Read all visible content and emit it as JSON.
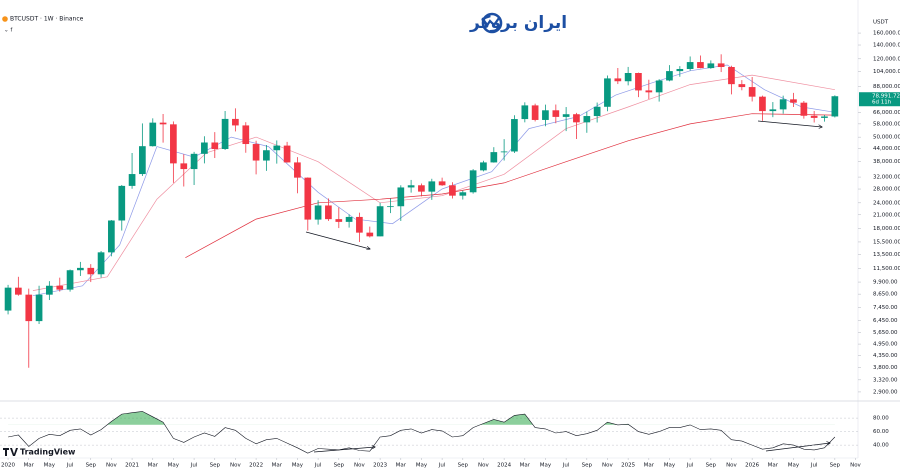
{
  "chart_data": {
    "type": "candlestick",
    "title": "BTCUSDT · 1W · Binance",
    "brand": "ایران بروکر",
    "watermark": "TradingView",
    "currency": "USDT",
    "log": true,
    "grid": false,
    "up_color": "#089981",
    "down_color": "#f23645",
    "xlim": [
      2019.935,
      2026.91
    ],
    "ylim": [
      2650,
      198000
    ],
    "x": [
      2020,
      2020.083,
      2020.167,
      2020.25,
      2020.333,
      2020.417,
      2020.5,
      2020.583,
      2020.667,
      2020.75,
      2020.833,
      2020.917,
      2021,
      2021.083,
      2021.167,
      2021.25,
      2021.333,
      2021.417,
      2021.5,
      2021.583,
      2021.667,
      2021.75,
      2021.833,
      2021.917,
      2022,
      2022.083,
      2022.167,
      2022.25,
      2022.333,
      2022.417,
      2022.5,
      2022.583,
      2022.667,
      2022.75,
      2022.833,
      2022.917,
      2023,
      2023.083,
      2023.167,
      2023.25,
      2023.333,
      2023.417,
      2023.5,
      2023.583,
      2023.667,
      2023.75,
      2023.833,
      2023.917,
      2024,
      2024.083,
      2024.167,
      2024.25,
      2024.333,
      2024.417,
      2024.5,
      2024.583,
      2024.667,
      2024.75,
      2024.833,
      2024.917,
      2025,
      2025.083,
      2025.167,
      2025.25,
      2025.333,
      2025.417,
      2025.5,
      2025.583,
      2025.667,
      2025.75,
      2025.833,
      2025.917,
      2026,
      2026.083,
      2026.167,
      2026.25,
      2026.333,
      2026.417,
      2026.5,
      2026.583,
      2026.667
    ],
    "open": [
      7200,
      9300,
      8600,
      6400,
      8600,
      9500,
      9100,
      11300,
      11600,
      10800,
      13800,
      19700,
      29000,
      33100,
      45200,
      58800,
      57700,
      37300,
      35000,
      41500,
      47100,
      43800,
      61300,
      57000,
      46300,
      38500,
      43200,
      45500,
      37700,
      31800,
      19900,
      23300,
      20000,
      19400,
      20500,
      17200,
      16500,
      23100,
      23100,
      28500,
      29200,
      27200,
      30500,
      29200,
      26000,
      27000,
      34500,
      37700,
      42300,
      42600,
      61200,
      71300,
      60600,
      67500,
      62700,
      64600,
      59000,
      63300,
      70200,
      96400,
      93400,
      102400,
      84300,
      82500,
      94200,
      104600,
      107100,
      115700,
      108200,
      114000,
      109500,
      90400,
      87500,
      78600,
      66900,
      68200,
      76300,
      73500,
      63500,
      62000,
      63000
    ],
    "high": [
      9600,
      10500,
      9200,
      9500,
      10000,
      10400,
      11400,
      12400,
      12100,
      14000,
      19800,
      29300,
      41900,
      58300,
      61700,
      64800,
      59600,
      41300,
      42400,
      50500,
      52900,
      67000,
      69000,
      59100,
      48000,
      45800,
      48200,
      47400,
      40000,
      31900,
      24700,
      25200,
      22800,
      21100,
      21500,
      18400,
      24000,
      25200,
      29200,
      31000,
      29800,
      31400,
      31800,
      30200,
      27500,
      35000,
      38400,
      44700,
      48900,
      63900,
      73800,
      72700,
      71900,
      72000,
      70000,
      65600,
      66500,
      73600,
      99600,
      108300,
      109600,
      102800,
      95000,
      95600,
      111900,
      110600,
      123200,
      124500,
      117900,
      126200,
      111000,
      94600,
      97900,
      79500,
      74000,
      79500,
      82000,
      74900,
      67000,
      64000,
      79800
    ],
    "low": [
      6900,
      8500,
      3800,
      6200,
      8100,
      8900,
      8900,
      10600,
      9900,
      10400,
      13200,
      17600,
      28100,
      32400,
      45000,
      47000,
      30000,
      28800,
      29300,
      37300,
      39600,
      43300,
      53300,
      42000,
      33000,
      34300,
      37200,
      37600,
      26700,
      17600,
      18800,
      19600,
      18100,
      18200,
      15500,
      16300,
      16500,
      21400,
      19600,
      26900,
      25800,
      24800,
      29000,
      25200,
      24900,
      26600,
      34100,
      37600,
      38500,
      41900,
      59000,
      59600,
      56500,
      58400,
      53500,
      49000,
      52500,
      58900,
      66800,
      90500,
      89200,
      78200,
      76600,
      74400,
      93400,
      98200,
      105200,
      108000,
      107300,
      103500,
      80600,
      84400,
      74500,
      60000,
      62500,
      65000,
      70000,
      61500,
      58900,
      59500,
      62300
    ],
    "close": [
      9300,
      8600,
      6400,
      8600,
      9500,
      9100,
      11300,
      11600,
      10800,
      13800,
      19700,
      29000,
      33100,
      45200,
      58800,
      57700,
      37300,
      35000,
      41500,
      47100,
      43800,
      61300,
      57000,
      46300,
      38500,
      43200,
      45500,
      37700,
      31800,
      19900,
      23300,
      20000,
      19400,
      20500,
      17200,
      16500,
      23100,
      23100,
      28500,
      29200,
      27200,
      30500,
      29200,
      26000,
      27000,
      34500,
      37700,
      42300,
      42600,
      61200,
      71300,
      60600,
      67500,
      62700,
      64600,
      59000,
      63300,
      70200,
      96400,
      93400,
      102400,
      84300,
      82500,
      94200,
      104600,
      107100,
      115700,
      108200,
      114000,
      109500,
      90400,
      87500,
      78600,
      66900,
      68200,
      76300,
      73500,
      63500,
      62000,
      63000,
      78991.72
    ],
    "price_label": {
      "label": "78,991.72",
      "countdown": "6d 11h"
    },
    "lines": [
      {
        "color": "#8f9be8",
        "x": [
          2020.2,
          2020.6,
          2020.9,
          2021.2,
          2021.5,
          2021.8,
          2022.1,
          2022.5,
          2022.8,
          2023.1,
          2023.5,
          2023.9,
          2024.2,
          2024.6,
          2024.9,
          2025.2,
          2025.5,
          2025.8,
          2026.1,
          2026.4,
          2026.667
        ],
        "values": [
          8500,
          9500,
          15000,
          45000,
          40000,
          50000,
          45000,
          27000,
          20000,
          19000,
          28000,
          34000,
          55000,
          63000,
          80000,
          92000,
          105000,
          112000,
          85000,
          70000,
          66000
        ]
      },
      {
        "color": "#ef8fa0",
        "x": [
          2020.2,
          2020.8,
          2021.2,
          2021.6,
          2022,
          2022.5,
          2023,
          2023.5,
          2024,
          2024.5,
          2025,
          2025.5,
          2026,
          2026.667
        ],
        "values": [
          9000,
          10500,
          25000,
          42000,
          50000,
          38000,
          24000,
          26000,
          33000,
          55000,
          70000,
          90000,
          100000,
          85000
        ]
      },
      {
        "color": "#e0303e",
        "x": [
          2021.43,
          2022,
          2022.5,
          2023,
          2023.5,
          2024,
          2024.5,
          2025,
          2025.5,
          2026,
          2026.667
        ],
        "values": [
          13000,
          20000,
          24000,
          25000,
          26500,
          30000,
          38000,
          48000,
          58000,
          65000,
          64000
        ]
      }
    ],
    "yticks": [
      {
        "value": 160000,
        "label": "160,000.00"
      },
      {
        "value": 140000,
        "label": "140,000.00"
      },
      {
        "value": 120000,
        "label": "120,000.00"
      },
      {
        "value": 104000,
        "label": "104,000.00"
      },
      {
        "value": 88000,
        "label": "88,000.00"
      },
      {
        "value": 66000,
        "label": "66,000.00"
      },
      {
        "value": 58000,
        "label": "58,000.00"
      },
      {
        "value": 50000,
        "label": "50,000.00"
      },
      {
        "value": 44000,
        "label": "44,000.00"
      },
      {
        "value": 38000,
        "label": "38,000.00"
      },
      {
        "value": 32000,
        "label": "32,000.00"
      },
      {
        "value": 28000,
        "label": "28,000.00"
      },
      {
        "value": 24000,
        "label": "24,000.00"
      },
      {
        "value": 21000,
        "label": "21,000.00"
      },
      {
        "value": 18000,
        "label": "18,000.00"
      },
      {
        "value": 15500,
        "label": "15,500.00"
      },
      {
        "value": 13500,
        "label": "13,500.00"
      },
      {
        "value": 11500,
        "label": "11,500.00"
      },
      {
        "value": 9900,
        "label": "9,900.00"
      },
      {
        "value": 8650,
        "label": "8,650.00"
      },
      {
        "value": 7450,
        "label": "7,450.00"
      },
      {
        "value": 6450,
        "label": "6,450.00"
      },
      {
        "value": 5650,
        "label": "5,650.00"
      },
      {
        "value": 4950,
        "label": "4,950.00"
      },
      {
        "value": 4350,
        "label": "4,350.00"
      },
      {
        "value": 3800,
        "label": "3,800.00"
      },
      {
        "value": 3320,
        "label": "3,320.00"
      },
      {
        "value": 2900,
        "label": "2,900.00"
      }
    ],
    "xticks": [
      {
        "value": 2020,
        "label": "2020"
      },
      {
        "value": 2020.167,
        "label": "Mar"
      },
      {
        "value": 2020.333,
        "label": "May"
      },
      {
        "value": 2020.5,
        "label": "Jul"
      },
      {
        "value": 2020.667,
        "label": "Sep"
      },
      {
        "value": 2020.833,
        "label": "Nov"
      },
      {
        "value": 2021,
        "label": "2021"
      },
      {
        "value": 2021.167,
        "label": "Mar"
      },
      {
        "value": 2021.333,
        "label": "May"
      },
      {
        "value": 2021.5,
        "label": "Jul"
      },
      {
        "value": 2021.667,
        "label": "Sep"
      },
      {
        "value": 2021.833,
        "label": "Nov"
      },
      {
        "value": 2022,
        "label": "2022"
      },
      {
        "value": 2022.167,
        "label": "Mar"
      },
      {
        "value": 2022.333,
        "label": "May"
      },
      {
        "value": 2022.5,
        "label": "Jul"
      },
      {
        "value": 2022.667,
        "label": "Sep"
      },
      {
        "value": 2022.833,
        "label": "Nov"
      },
      {
        "value": 2023,
        "label": "2023"
      },
      {
        "value": 2023.167,
        "label": "Mar"
      },
      {
        "value": 2023.333,
        "label": "May"
      },
      {
        "value": 2023.5,
        "label": "Jul"
      },
      {
        "value": 2023.667,
        "label": "Sep"
      },
      {
        "value": 2023.833,
        "label": "Nov"
      },
      {
        "value": 2024,
        "label": "2024"
      },
      {
        "value": 2024.167,
        "label": "Mar"
      },
      {
        "value": 2024.333,
        "label": "May"
      },
      {
        "value": 2024.5,
        "label": "Jul"
      },
      {
        "value": 2024.667,
        "label": "Sep"
      },
      {
        "value": 2024.833,
        "label": "Nov"
      },
      {
        "value": 2025,
        "label": "2025"
      },
      {
        "value": 2025.167,
        "label": "Mar"
      },
      {
        "value": 2025.333,
        "label": "May"
      },
      {
        "value": 2025.5,
        "label": "Jul"
      },
      {
        "value": 2025.667,
        "label": "Sep"
      },
      {
        "value": 2025.833,
        "label": "Nov"
      },
      {
        "value": 2026,
        "label": "2026"
      },
      {
        "value": 2026.167,
        "label": "Mar"
      },
      {
        "value": 2026.333,
        "label": "May"
      },
      {
        "value": 2026.5,
        "label": "Jul"
      },
      {
        "value": 2026.667,
        "label": "Sep"
      },
      {
        "value": 2026.833,
        "label": "Nov"
      }
    ],
    "rsi": {
      "color": "#131722",
      "fill": "#2ea84a",
      "overbought": 70,
      "ylim": [
        18,
        100
      ],
      "yticks": [
        {
          "value": 80,
          "label": "80.00"
        },
        {
          "value": 60,
          "label": "60.00"
        },
        {
          "value": 40,
          "label": "40.00"
        }
      ],
      "values": [
        52,
        55,
        38,
        50,
        56,
        54,
        62,
        64,
        55,
        63,
        75,
        86,
        88,
        90,
        82,
        74,
        50,
        44,
        52,
        58,
        53,
        66,
        62,
        50,
        42,
        48,
        50,
        43,
        36,
        28,
        35,
        34,
        33,
        36,
        32,
        31,
        52,
        54,
        62,
        64,
        58,
        63,
        61,
        52,
        54,
        66,
        72,
        78,
        74,
        84,
        86,
        66,
        64,
        58,
        60,
        54,
        57,
        62,
        74,
        70,
        71,
        60,
        56,
        60,
        66,
        66,
        70,
        63,
        64,
        62,
        48,
        46,
        40,
        34,
        36,
        42,
        40,
        34,
        33,
        36,
        52
      ]
    }
  }
}
